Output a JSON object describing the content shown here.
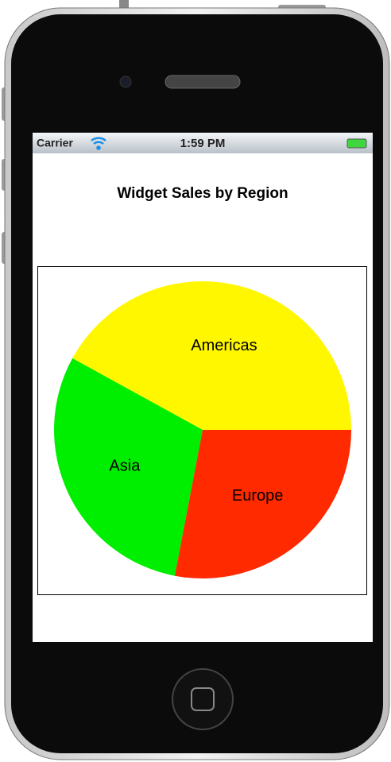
{
  "status_bar": {
    "carrier": "Carrier",
    "time": "1:59 PM"
  },
  "chart_data": {
    "type": "pie",
    "title": "Widget Sales by Region",
    "categories": [
      "Americas",
      "Asia",
      "Europe"
    ],
    "values": [
      42,
      30,
      28
    ],
    "colors": [
      "#fff700",
      "#00ee00",
      "#ff2a00"
    ],
    "start_angle": 0,
    "direction": "counterclockwise"
  }
}
